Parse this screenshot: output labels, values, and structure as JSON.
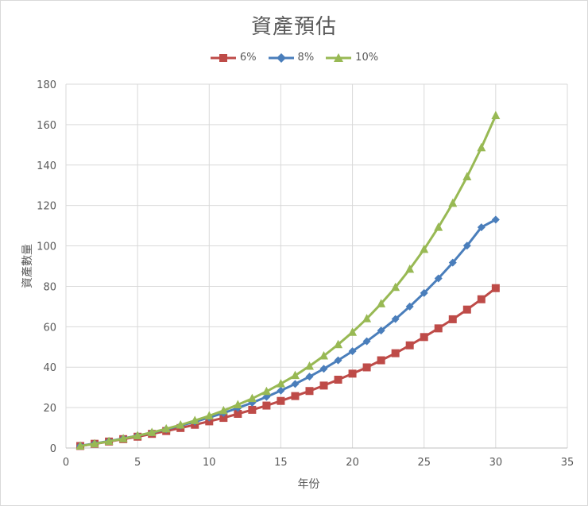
{
  "chart_data": {
    "type": "line",
    "title": "資產預估",
    "xlabel": "年份",
    "ylabel": "資產數量",
    "xlim": [
      0,
      35
    ],
    "ylim": [
      0,
      180
    ],
    "x_ticks": [
      "0",
      "5",
      "10",
      "15",
      "20",
      "25",
      "30",
      "35"
    ],
    "y_ticks": [
      "0",
      "20",
      "40",
      "60",
      "80",
      "100",
      "120",
      "140",
      "160",
      "180"
    ],
    "grid": true,
    "legend_position": "top",
    "x": [
      1,
      2,
      3,
      4,
      5,
      6,
      7,
      8,
      9,
      10,
      11,
      12,
      13,
      14,
      15,
      16,
      17,
      18,
      19,
      20,
      21,
      22,
      23,
      24,
      25,
      26,
      27,
      28,
      29,
      30
    ],
    "series": [
      {
        "name": "6%",
        "color": "#be4b48",
        "marker": "square",
        "values": [
          1.0,
          2.1,
          3.2,
          4.4,
          5.6,
          7.0,
          8.4,
          9.9,
          11.5,
          13.2,
          14.9,
          16.9,
          18.9,
          21.0,
          23.3,
          25.7,
          28.2,
          30.9,
          33.8,
          36.8,
          39.9,
          43.4,
          46.9,
          50.8,
          54.9,
          59.2,
          63.7,
          68.5,
          73.6,
          79.1
        ]
      },
      {
        "name": "8%",
        "color": "#4a7ebb",
        "marker": "diamond",
        "values": [
          1.1,
          2.2,
          3.4,
          4.7,
          6.1,
          7.6,
          9.3,
          11.1,
          13.0,
          15.1,
          17.3,
          19.8,
          22.4,
          25.3,
          28.4,
          31.7,
          35.3,
          39.2,
          43.4,
          47.9,
          52.8,
          58.1,
          63.8,
          70.0,
          76.7,
          83.9,
          91.7,
          100.1,
          109.2,
          113.0
        ]
      },
      {
        "name": "10%",
        "color": "#98b954",
        "marker": "triangle",
        "values": [
          1.0,
          2.1,
          3.3,
          4.6,
          6.1,
          7.7,
          9.5,
          11.4,
          13.6,
          15.9,
          18.5,
          21.4,
          24.5,
          28.0,
          31.8,
          35.9,
          40.5,
          45.6,
          51.2,
          57.3,
          64.0,
          71.4,
          79.5,
          88.5,
          98.3,
          109.2,
          121.1,
          134.2,
          148.6,
          164.5
        ]
      }
    ]
  }
}
